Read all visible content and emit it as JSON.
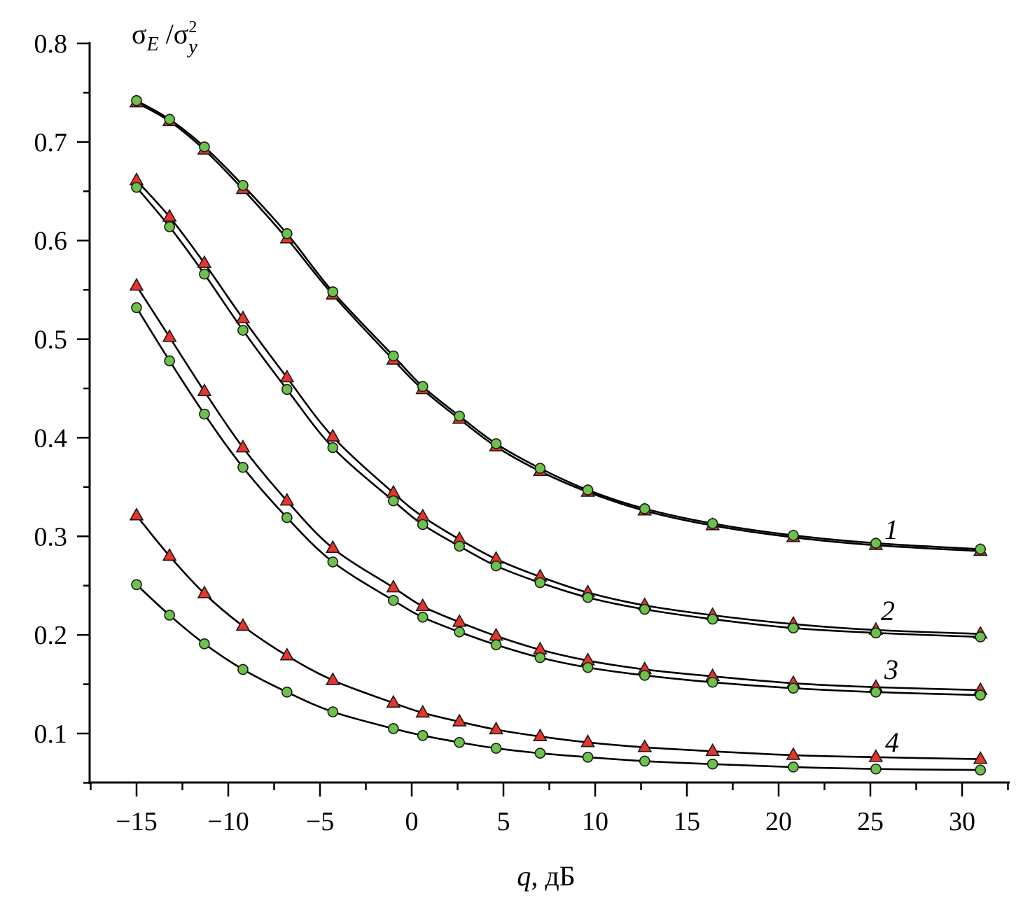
{
  "chart_data": {
    "type": "line",
    "title": "",
    "xlabel": {
      "var": "q",
      "unit": ", дБ"
    },
    "ylabel": {
      "sigma": "σ",
      "sub_E": "E",
      "slash": " /σ",
      "sup_2": "2",
      "sub_y": "y"
    },
    "xlim": [
      -17.5,
      32.5
    ],
    "ylim": [
      0.05,
      0.8
    ],
    "x_ticks": [
      -15,
      -10,
      -5,
      0,
      5,
      10,
      15,
      20,
      25,
      30
    ],
    "x_tick_labels": [
      "−15",
      "−10",
      "−5",
      "0",
      "5",
      "10",
      "15",
      "20",
      "25",
      "30"
    ],
    "y_ticks": [
      0.1,
      0.2,
      0.3,
      0.4,
      0.5,
      0.6,
      0.7,
      0.8
    ],
    "y_tick_labels": [
      "0.1",
      "0.2",
      "0.3",
      "0.4",
      "0.5",
      "0.6",
      "0.7",
      "0.8"
    ],
    "x": [
      -15,
      -13.2,
      -11.3,
      -9.2,
      -6.8,
      -4.3,
      -1.0,
      0.6,
      2.6,
      4.6,
      7.0,
      9.6,
      12.7,
      16.4,
      20.8,
      25.3,
      31.0
    ],
    "series": [
      {
        "name": "1",
        "triangles": [
          0.74,
          0.721,
          0.692,
          0.652,
          0.602,
          0.545,
          0.479,
          0.449,
          0.419,
          0.391,
          0.366,
          0.345,
          0.326,
          0.311,
          0.299,
          0.291,
          0.285
        ],
        "circles": [
          0.742,
          0.723,
          0.695,
          0.656,
          0.607,
          0.548,
          0.483,
          0.452,
          0.422,
          0.394,
          0.369,
          0.347,
          0.328,
          0.313,
          0.301,
          0.293,
          0.287
        ]
      },
      {
        "name": "2",
        "triangles": [
          0.661,
          0.624,
          0.577,
          0.521,
          0.461,
          0.401,
          0.344,
          0.32,
          0.297,
          0.277,
          0.259,
          0.243,
          0.23,
          0.22,
          0.211,
          0.205,
          0.201
        ],
        "circles": [
          0.654,
          0.614,
          0.566,
          0.509,
          0.449,
          0.39,
          0.336,
          0.312,
          0.29,
          0.27,
          0.253,
          0.238,
          0.226,
          0.216,
          0.207,
          0.202,
          0.198
        ]
      },
      {
        "name": "3",
        "triangles": [
          0.554,
          0.502,
          0.447,
          0.39,
          0.336,
          0.288,
          0.248,
          0.229,
          0.213,
          0.199,
          0.185,
          0.174,
          0.165,
          0.158,
          0.151,
          0.147,
          0.144
        ],
        "circles": [
          0.532,
          0.478,
          0.424,
          0.37,
          0.319,
          0.274,
          0.235,
          0.218,
          0.203,
          0.19,
          0.177,
          0.167,
          0.159,
          0.152,
          0.146,
          0.142,
          0.139
        ]
      },
      {
        "name": "4",
        "triangles": [
          0.321,
          0.28,
          0.242,
          0.209,
          0.179,
          0.154,
          0.131,
          0.121,
          0.112,
          0.104,
          0.097,
          0.091,
          0.086,
          0.082,
          0.078,
          0.076,
          0.074
        ],
        "circles": [
          0.251,
          0.22,
          0.191,
          0.165,
          0.142,
          0.122,
          0.105,
          0.098,
          0.091,
          0.085,
          0.08,
          0.076,
          0.072,
          0.069,
          0.066,
          0.064,
          0.063
        ]
      }
    ],
    "markers": {
      "triangle_color": "#e8342a",
      "circle_color": "#6cc24a"
    },
    "grid": false
  }
}
